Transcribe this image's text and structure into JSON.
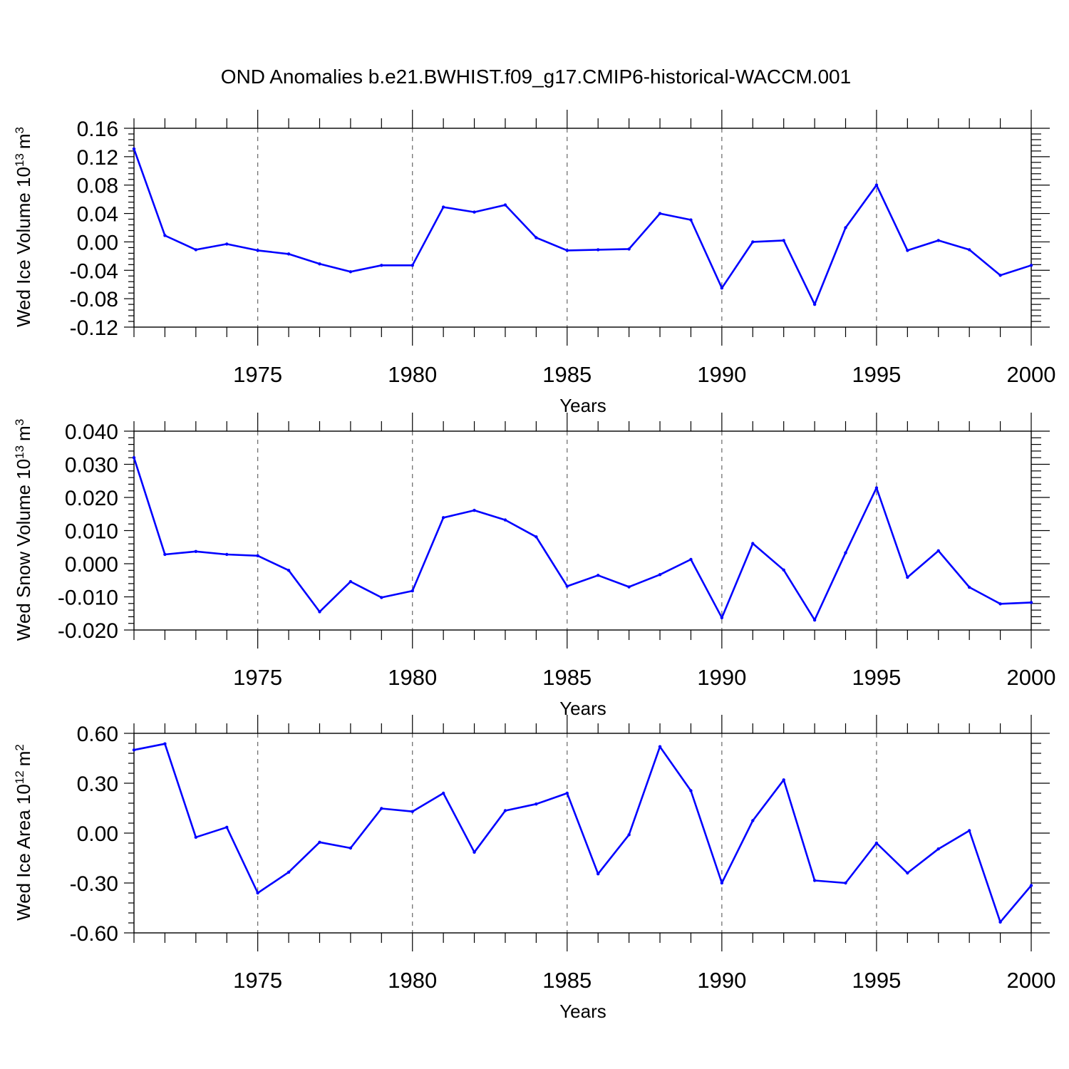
{
  "title": "OND Anomalies b.e21.BWHIST.f09_g17.CMIP6-historical-WACCM.001",
  "colors": {
    "series": "#0000ff",
    "axis": "#000000",
    "grid": "#666666"
  },
  "chart_data": [
    {
      "type": "line",
      "ylabel_main": "Wed Ice Volume 10",
      "ylabel_exp": "13",
      "ylabel_unit": "m",
      "ylabel_unit_exp": "3",
      "xlabel": "Years",
      "xlim": [
        1971,
        2000
      ],
      "ylim": [
        -0.12,
        0.16
      ],
      "yticks": [
        -0.12,
        -0.08,
        -0.04,
        0.0,
        0.04,
        0.08,
        0.12,
        0.16
      ],
      "ytick_labels": [
        "-0.12",
        "-0.08",
        "-0.04",
        "0.00",
        "0.04",
        "0.08",
        "0.12",
        "0.16"
      ],
      "xticks": [
        1975,
        1980,
        1985,
        1990,
        1995,
        2000
      ],
      "xtick_labels": [
        "1975",
        "1980",
        "1985",
        "1990",
        "1995",
        "2000"
      ],
      "grid": "vertical-dashed-at-major-x",
      "x": [
        1971,
        1972,
        1973,
        1974,
        1975,
        1976,
        1977,
        1978,
        1979,
        1980,
        1981,
        1982,
        1983,
        1984,
        1985,
        1986,
        1987,
        1988,
        1989,
        1990,
        1991,
        1992,
        1993,
        1994,
        1995,
        1996,
        1997,
        1998,
        1999,
        2000
      ],
      "values": [
        0.131,
        0.009,
        -0.011,
        -0.003,
        -0.012,
        -0.017,
        -0.031,
        -0.042,
        -0.033,
        -0.033,
        0.049,
        0.042,
        0.052,
        0.006,
        -0.012,
        -0.011,
        -0.01,
        0.04,
        0.031,
        -0.065,
        0.0,
        0.002,
        -0.088,
        0.02,
        0.08,
        -0.012,
        0.002,
        -0.011,
        -0.047,
        -0.033
      ]
    },
    {
      "type": "line",
      "ylabel_main": "Wed Snow Volume 10",
      "ylabel_exp": "13",
      "ylabel_unit": "m",
      "ylabel_unit_exp": "3",
      "xlabel": "Years",
      "xlim": [
        1971,
        2000
      ],
      "ylim": [
        -0.02,
        0.04
      ],
      "yticks": [
        -0.02,
        -0.01,
        0.0,
        0.01,
        0.02,
        0.03,
        0.04
      ],
      "ytick_labels": [
        "-0.020",
        "-0.010",
        "0.000",
        "0.010",
        "0.020",
        "0.030",
        "0.040"
      ],
      "xticks": [
        1975,
        1980,
        1985,
        1990,
        1995,
        2000
      ],
      "xtick_labels": [
        "1975",
        "1980",
        "1985",
        "1990",
        "1995",
        "2000"
      ],
      "grid": "vertical-dashed-at-major-x",
      "x": [
        1971,
        1972,
        1973,
        1974,
        1975,
        1976,
        1977,
        1978,
        1979,
        1980,
        1981,
        1982,
        1983,
        1984,
        1985,
        1986,
        1987,
        1988,
        1989,
        1990,
        1991,
        1992,
        1993,
        1994,
        1995,
        1996,
        1997,
        1998,
        1999,
        2000
      ],
      "values": [
        0.032,
        0.0028,
        0.0037,
        0.0028,
        0.0024,
        -0.002,
        -0.0145,
        -0.0054,
        -0.0102,
        -0.0082,
        0.0139,
        0.0161,
        0.0132,
        0.0081,
        -0.0068,
        -0.0035,
        -0.007,
        -0.0033,
        0.0013,
        -0.0163,
        0.0061,
        -0.0019,
        -0.017,
        0.0033,
        0.0229,
        -0.0041,
        0.0039,
        -0.0071,
        -0.0121,
        -0.0117
      ]
    },
    {
      "type": "line",
      "ylabel_main": "Wed Ice Area 10",
      "ylabel_exp": "12",
      "ylabel_unit": "m",
      "ylabel_unit_exp": "2",
      "xlabel": "Years",
      "xlim": [
        1971,
        2000
      ],
      "ylim": [
        -0.6,
        0.6
      ],
      "yticks": [
        -0.6,
        -0.3,
        0.0,
        0.3,
        0.6
      ],
      "ytick_labels": [
        "-0.60",
        "-0.30",
        "0.00",
        "0.30",
        "0.60"
      ],
      "xticks": [
        1975,
        1980,
        1985,
        1990,
        1995,
        2000
      ],
      "xtick_labels": [
        "1975",
        "1980",
        "1985",
        "1990",
        "1995",
        "2000"
      ],
      "grid": "vertical-dashed-at-major-x",
      "x": [
        1971,
        1972,
        1973,
        1974,
        1975,
        1976,
        1977,
        1978,
        1979,
        1980,
        1981,
        1982,
        1983,
        1984,
        1985,
        1986,
        1987,
        1988,
        1989,
        1990,
        1991,
        1992,
        1993,
        1994,
        1995,
        1996,
        1997,
        1998,
        1999,
        2000
      ],
      "values": [
        0.5,
        0.537,
        -0.025,
        0.035,
        -0.36,
        -0.235,
        -0.055,
        -0.09,
        0.148,
        0.13,
        0.24,
        -0.115,
        0.135,
        0.175,
        0.24,
        -0.245,
        -0.01,
        0.52,
        0.255,
        -0.3,
        0.075,
        0.32,
        -0.285,
        -0.3,
        -0.06,
        -0.24,
        -0.095,
        0.015,
        -0.535,
        -0.315
      ]
    }
  ]
}
